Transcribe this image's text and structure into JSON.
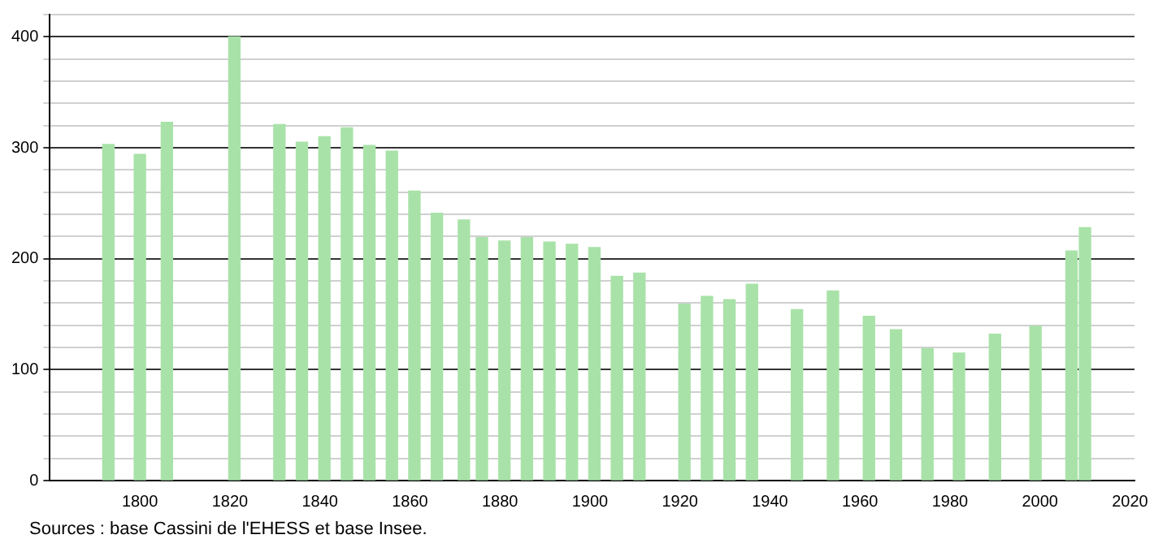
{
  "chart_data": {
    "type": "bar",
    "x": [
      1793,
      1800,
      1806,
      1821,
      1831,
      1836,
      1841,
      1846,
      1851,
      1856,
      1861,
      1866,
      1872,
      1876,
      1881,
      1886,
      1891,
      1896,
      1901,
      1906,
      1911,
      1921,
      1926,
      1931,
      1936,
      1946,
      1954,
      1962,
      1968,
      1975,
      1982,
      1990,
      1999,
      2007,
      2010
    ],
    "values": [
      303,
      294,
      323,
      400,
      321,
      305,
      310,
      318,
      302,
      297,
      261,
      241,
      235,
      219,
      216,
      219,
      215,
      213,
      210,
      184,
      187,
      159,
      166,
      163,
      177,
      154,
      171,
      148,
      136,
      119,
      115,
      132,
      139,
      207,
      228
    ],
    "color": "#a8e2a8",
    "xlim": [
      1780,
      2021
    ],
    "xticks": [
      1800,
      1820,
      1840,
      1860,
      1880,
      1900,
      1920,
      1940,
      1960,
      1980,
      2000,
      2020
    ],
    "ylim": [
      0,
      420
    ],
    "yticks": [
      0,
      {
        "value": 20,
        "label": null
      },
      {
        "value": 40,
        "label": null
      },
      {
        "value": 60,
        "label": null
      },
      {
        "value": 80,
        "label": null
      },
      100,
      {
        "value": 120,
        "label": null
      },
      {
        "value": 140,
        "label": null
      },
      {
        "value": 160,
        "label": null
      },
      {
        "value": 180,
        "label": null
      },
      200,
      {
        "value": 220,
        "label": null
      },
      {
        "value": 240,
        "label": null
      },
      {
        "value": 260,
        "label": null
      },
      {
        "value": 280,
        "label": null
      },
      300,
      {
        "value": 320,
        "label": null
      },
      {
        "value": 340,
        "label": null
      },
      {
        "value": 360,
        "label": null
      },
      {
        "value": 380,
        "label": null
      },
      400,
      {
        "value": 420,
        "label": null
      }
    ],
    "grid": "y",
    "legend": false,
    "annotations": [
      "Sources : base Cassini de l'EHESS et base Insee."
    ]
  }
}
